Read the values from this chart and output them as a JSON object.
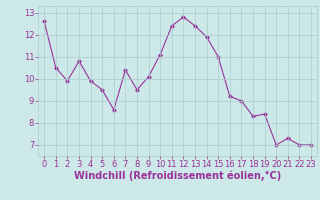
{
  "x": [
    0,
    1,
    2,
    3,
    4,
    5,
    6,
    7,
    8,
    9,
    10,
    11,
    12,
    13,
    14,
    15,
    16,
    17,
    18,
    19,
    20,
    21,
    22,
    23
  ],
  "y": [
    12.6,
    10.5,
    9.9,
    10.8,
    9.9,
    9.5,
    8.6,
    10.4,
    9.5,
    10.1,
    11.1,
    12.4,
    12.8,
    12.4,
    11.9,
    11.0,
    9.2,
    9.0,
    8.3,
    8.4,
    7.0,
    7.3,
    7.0,
    7.0
  ],
  "line_color": "#993399",
  "marker": "D",
  "marker_size": 2,
  "bg_color": "#cce8e8",
  "grid_color": "#aacccc",
  "xlabel": "Windchill (Refroidissement éolien,°C)",
  "xlabel_color": "#993399",
  "yticks": [
    7,
    8,
    9,
    10,
    11,
    12,
    13
  ],
  "xticks": [
    0,
    1,
    2,
    3,
    4,
    5,
    6,
    7,
    8,
    9,
    10,
    11,
    12,
    13,
    14,
    15,
    16,
    17,
    18,
    19,
    20,
    21,
    22,
    23
  ],
  "xlim": [
    -0.5,
    23.5
  ],
  "ylim": [
    6.5,
    13.3
  ],
  "tick_color": "#993399",
  "tick_fontsize": 6,
  "xlabel_fontsize": 7
}
